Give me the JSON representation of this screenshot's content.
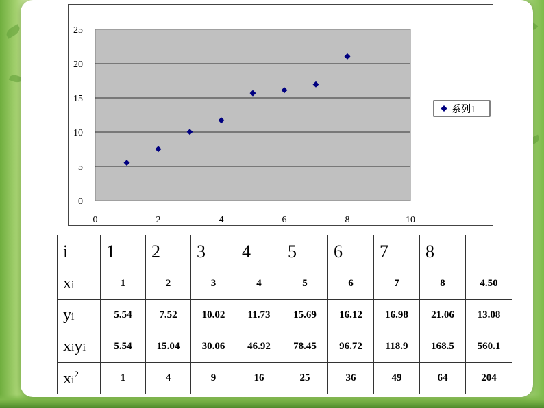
{
  "chart_data": {
    "type": "scatter",
    "x": [
      1,
      2,
      3,
      4,
      5,
      6,
      7,
      8
    ],
    "y": [
      5.54,
      7.52,
      10.02,
      11.73,
      15.69,
      16.12,
      16.98,
      21.06
    ],
    "xlim": [
      0,
      10
    ],
    "ylim": [
      0,
      25
    ],
    "x_ticks": [
      "0",
      "2",
      "4",
      "6",
      "8",
      "10"
    ],
    "y_ticks": [
      "0",
      "5",
      "10",
      "15",
      "20",
      "25"
    ],
    "series": [
      {
        "name": "系列1",
        "marker": "diamond",
        "color": "#000080"
      }
    ],
    "plot_background": "#c0c0c0",
    "grid": "horizontal",
    "legend": "right"
  },
  "table": {
    "header": [
      "i",
      "1",
      "2",
      "3",
      "4",
      "5",
      "6",
      "7",
      "8",
      ""
    ],
    "rows": [
      {
        "label": "x",
        "label_sub": "i",
        "label_sub2": "",
        "label_sup": "",
        "values": [
          "1",
          "2",
          "3",
          "4",
          "5",
          "6",
          "7",
          "8",
          "4.50"
        ]
      },
      {
        "label": "y",
        "label_sub": "i",
        "label_sub2": "",
        "label_sup": "",
        "values": [
          "5.54",
          "7.52",
          "10.02",
          "11.73",
          "15.69",
          "16.12",
          "16.98",
          "21.06",
          "13.08"
        ]
      },
      {
        "label": "x",
        "label_sub": "i",
        "label_mid": "y",
        "label_sub2": "i",
        "label_sup": "",
        "values": [
          "5.54",
          "15.04",
          "30.06",
          "46.92",
          "78.45",
          "96.72",
          "118.9",
          "168.5",
          "560.1"
        ]
      },
      {
        "label": "x",
        "label_sub": "i",
        "label_sub2": "",
        "label_sup": "2",
        "values": [
          "1",
          "4",
          "9",
          "16",
          "25",
          "36",
          "49",
          "64",
          "204"
        ]
      }
    ]
  }
}
